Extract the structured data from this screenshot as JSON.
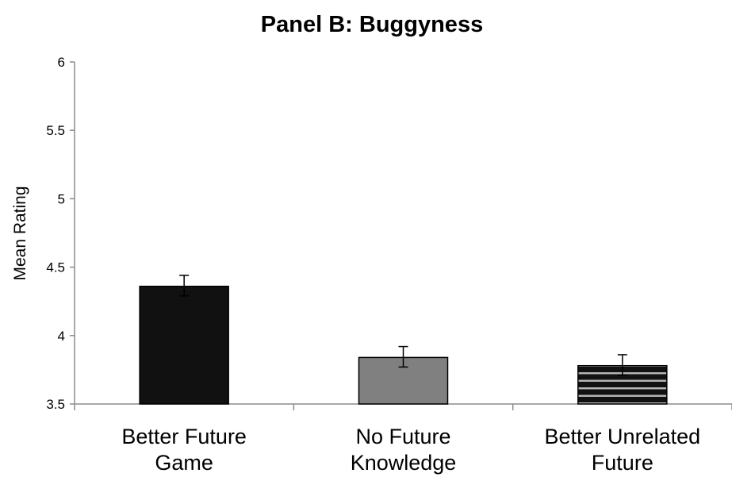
{
  "chart_data": {
    "type": "bar",
    "title": "Panel B: Buggyness",
    "xlabel": "",
    "ylabel": "Mean Rating",
    "ylim": [
      3.5,
      6
    ],
    "yticks": [
      "3.5",
      "4",
      "4.5",
      "5",
      "5.5",
      "6"
    ],
    "grid": false,
    "legend": "none",
    "categories": [
      [
        "Better Future",
        "Game"
      ],
      [
        "No Future",
        "Knowledge"
      ],
      [
        "Better Unrelated",
        "Future"
      ]
    ],
    "values": [
      4.36,
      3.84,
      3.78
    ],
    "error_bars": [
      {
        "low": 4.29,
        "high": 4.44
      },
      {
        "low": 3.77,
        "high": 3.92
      },
      {
        "low": 3.71,
        "high": 3.86
      }
    ],
    "bar_styles": [
      {
        "fill": "#111111",
        "pattern": "solid"
      },
      {
        "fill": "#808080",
        "pattern": "solid"
      },
      {
        "fill": "#111111",
        "pattern": "horizontal-stripes",
        "stripe_color": "#b3b3b3"
      }
    ]
  }
}
